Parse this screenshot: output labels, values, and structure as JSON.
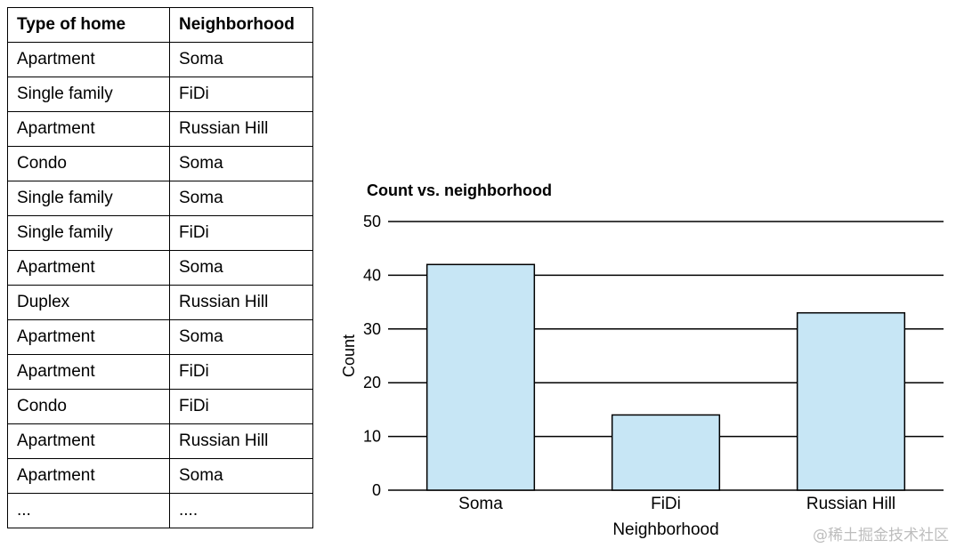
{
  "table": {
    "headers": [
      "Type of home",
      "Neighborhood"
    ],
    "rows": [
      [
        "Apartment",
        "Soma"
      ],
      [
        "Single family",
        "FiDi"
      ],
      [
        "Apartment",
        "Russian Hill"
      ],
      [
        "Condo",
        "Soma"
      ],
      [
        "Single family",
        "Soma"
      ],
      [
        "Single family",
        "FiDi"
      ],
      [
        "Apartment",
        "Soma"
      ],
      [
        "Duplex",
        "Russian Hill"
      ],
      [
        "Apartment",
        "Soma"
      ],
      [
        "Apartment",
        "FiDi"
      ],
      [
        "Condo",
        "FiDi"
      ],
      [
        "Apartment",
        "Russian Hill"
      ],
      [
        "Apartment",
        "Soma"
      ],
      [
        "...",
        "...."
      ]
    ]
  },
  "chart_data": {
    "type": "bar",
    "title": "Count vs. neighborhood",
    "xlabel": "Neighborhood",
    "ylabel": "Count",
    "categories": [
      "Soma",
      "FiDi",
      "Russian Hill"
    ],
    "values": [
      42,
      14,
      33
    ],
    "ylim": [
      0,
      50
    ],
    "yticks": [
      0,
      10,
      20,
      30,
      40,
      50
    ],
    "grid": "horizontal",
    "bar_color": "#c7e6f5",
    "bar_edge_color": "#000000"
  },
  "watermark": "@稀土掘金技术社区"
}
